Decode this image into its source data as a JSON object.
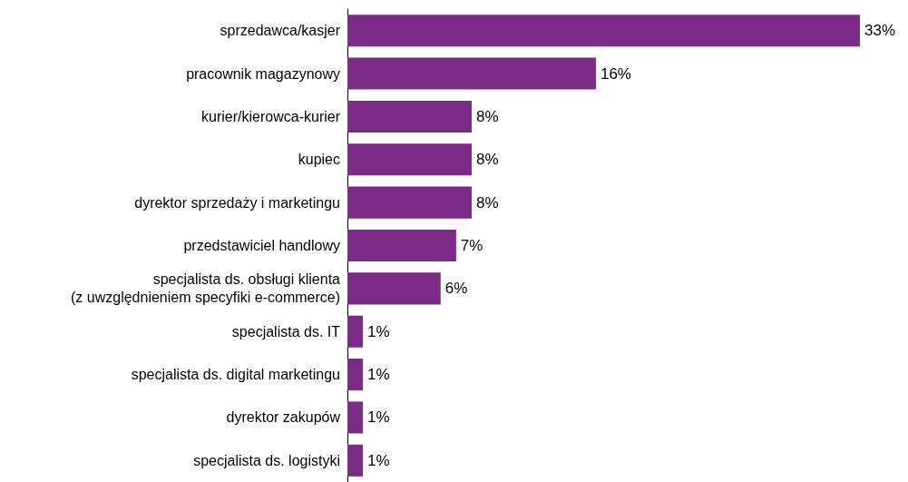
{
  "chart_data": {
    "type": "bar",
    "orientation": "horizontal",
    "categories": [
      "sprzedawca/kasjer",
      "pracownik magazynowy",
      "kurier/kierowca-kurier",
      "kupiec",
      "dyrektor sprzedaży i marketingu",
      "przedstawiciel handlowy",
      "specjalista ds. obsługi klienta\n(z uwzględnieniem specyfiki e-commerce)",
      "specjalista ds. IT",
      "specjalista ds. digital marketingu",
      "dyrektor zakupów",
      "specjalista ds. logistyki"
    ],
    "values": [
      33,
      16,
      8,
      8,
      8,
      7,
      6,
      1,
      1,
      1,
      1
    ],
    "value_labels": [
      "33%",
      "16%",
      "8%",
      "8%",
      "8%",
      "7%",
      "6%",
      "1%",
      "1%",
      "1%",
      "1%"
    ],
    "color": "#7b2a85"
  }
}
